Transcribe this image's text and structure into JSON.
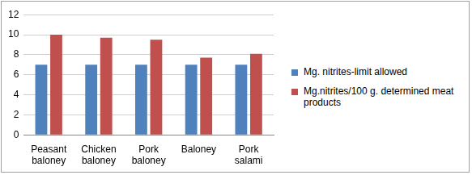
{
  "chart_data": {
    "type": "bar",
    "categories": [
      "Peasant baloney",
      "Chicken baloney",
      "Pork baloney",
      "Baloney",
      "Pork salami"
    ],
    "series": [
      {
        "name": "Mg. nitrites-limit allowed",
        "color": "#4f81bd",
        "values": [
          7,
          7,
          7,
          7,
          7
        ]
      },
      {
        "name": "Mg.nitrites/100 g. determined meat products",
        "color": "#c0504d",
        "values": [
          10,
          9.7,
          9.5,
          7.7,
          8.1
        ]
      }
    ],
    "ylim": [
      0,
      12
    ],
    "yticks": [
      0,
      2,
      4,
      6,
      8,
      10,
      12
    ],
    "grid": true,
    "legend": "right"
  }
}
